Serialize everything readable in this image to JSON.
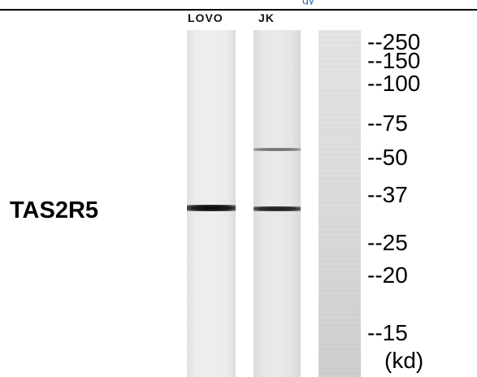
{
  "header_fragment": "gy",
  "lanes": [
    {
      "label": "LOVO"
    },
    {
      "label": "JK"
    },
    {
      "label": ""
    }
  ],
  "protein": "TAS2R5",
  "markers": [
    "--250",
    "--150",
    "--100",
    "--75",
    "--50",
    "--37",
    "--25",
    "--20",
    "--15"
  ],
  "unit": "(kd)"
}
